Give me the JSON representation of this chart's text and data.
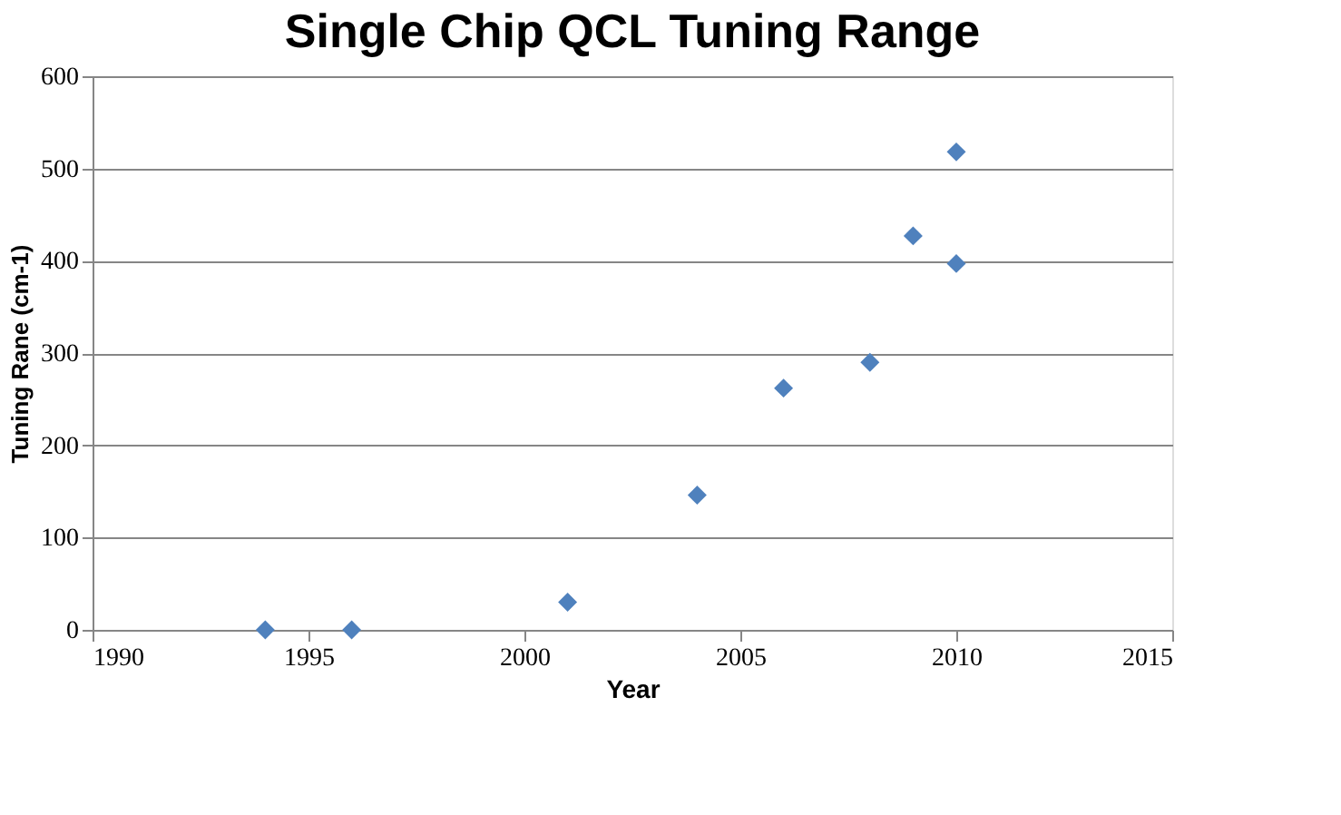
{
  "chart_data": {
    "type": "scatter",
    "title": "Single Chip QCL Tuning Range",
    "xlabel": "Year",
    "ylabel": "Tuning Rane (cm-1)",
    "x": [
      1994,
      1996,
      2001,
      2004,
      2006,
      2008,
      2009,
      2010,
      2010
    ],
    "series": [
      {
        "color": "#4f81bd",
        "values": [
          0,
          0,
          30,
          146,
          262,
          290,
          427,
          518,
          397
        ]
      }
    ],
    "xlim": [
      1990,
      2015
    ],
    "xticks": [
      1990,
      1995,
      2000,
      2005,
      2010,
      2015
    ],
    "ylim": [
      0,
      600
    ],
    "yticks": [
      0,
      100,
      200,
      300,
      400,
      500,
      600
    ],
    "grid": "y",
    "marker": "diamond",
    "legend": false
  }
}
